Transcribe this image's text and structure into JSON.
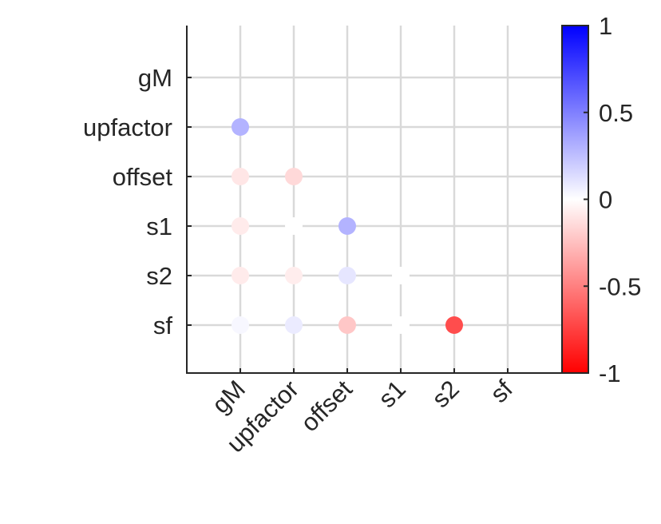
{
  "chart_data": {
    "type": "heatmap",
    "title": "",
    "xlabel": "",
    "ylabel": "",
    "variables": [
      "gM",
      "upfactor",
      "offset",
      "s1",
      "s2",
      "sf"
    ],
    "triangle": "lower",
    "grid": true,
    "colormap": {
      "low": "#ff0000",
      "mid": "#ffffff",
      "high": "#0000ff"
    },
    "clim": [
      -1,
      1
    ],
    "colorbar": {
      "location": "right",
      "ticks": [
        1,
        0.5,
        0,
        -0.5,
        -1
      ],
      "tick_labels": [
        "1",
        "0.5",
        "0",
        "-0.5",
        "-1"
      ]
    },
    "cells": [
      {
        "row": "upfactor",
        "col": "gM",
        "value": 0.3
      },
      {
        "row": "offset",
        "col": "gM",
        "value": -0.1
      },
      {
        "row": "offset",
        "col": "upfactor",
        "value": -0.15
      },
      {
        "row": "s1",
        "col": "gM",
        "value": -0.08
      },
      {
        "row": "s1",
        "col": "upfactor",
        "value": 0.0
      },
      {
        "row": "s1",
        "col": "offset",
        "value": 0.3
      },
      {
        "row": "s2",
        "col": "gM",
        "value": -0.08
      },
      {
        "row": "s2",
        "col": "upfactor",
        "value": -0.07
      },
      {
        "row": "s2",
        "col": "offset",
        "value": 0.1
      },
      {
        "row": "s2",
        "col": "s1",
        "value": 0.0
      },
      {
        "row": "sf",
        "col": "gM",
        "value": 0.03
      },
      {
        "row": "sf",
        "col": "upfactor",
        "value": 0.08
      },
      {
        "row": "sf",
        "col": "offset",
        "value": -0.22
      },
      {
        "row": "sf",
        "col": "s1",
        "value": 0.0
      },
      {
        "row": "sf",
        "col": "s2",
        "value": -0.7
      }
    ]
  }
}
